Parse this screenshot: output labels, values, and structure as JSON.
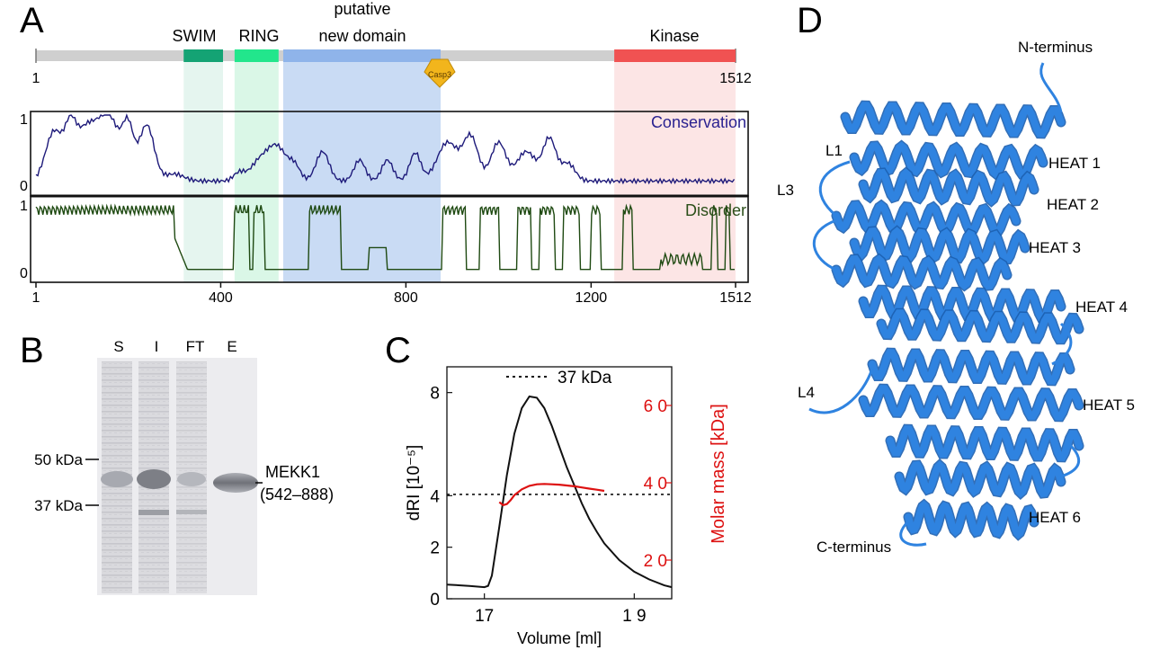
{
  "panel_labels": {
    "a": "A",
    "b": "B",
    "c": "C",
    "d": "D"
  },
  "colors": {
    "swim": "#14a374",
    "ring": "#22e68c",
    "new_domain": "#8fb4ea",
    "kinase": "#f05252",
    "casp3": "#f2b51c",
    "conservation": "#1e1a7a",
    "disorder": "#1f4a12",
    "molar_mass": "#dd1111",
    "helix": "#2f83e0"
  },
  "panel_a": {
    "length_start": "1",
    "length_end": "1512",
    "protein_length": 1512,
    "domains": [
      {
        "label": "SWIM",
        "start": 320,
        "end": 405,
        "color_key": "swim"
      },
      {
        "label": "RING",
        "start": 430,
        "end": 525,
        "color_key": "ring"
      },
      {
        "label_line1": "putative",
        "label_line2": "new domain",
        "start": 535,
        "end": 875,
        "color_key": "new_domain"
      },
      {
        "label": "Kinase",
        "start": 1250,
        "end": 1512,
        "color_key": "kinase"
      }
    ],
    "casp3": {
      "label": "Casp3",
      "position": 875
    },
    "conservation_label": "Conservation",
    "disorder_label": "Disorder",
    "y_ticks_top": [
      "1",
      "0"
    ],
    "y_ticks_bottom": [
      "1",
      "0"
    ],
    "x_ticks": [
      "1",
      "400",
      "800",
      "1200",
      "1512"
    ],
    "x_tick_values": [
      1,
      400,
      800,
      1200,
      1512
    ]
  },
  "panel_b": {
    "lanes": [
      "S",
      "I",
      "FT",
      "E"
    ],
    "markers": [
      "50 kDa",
      "37 kDa"
    ],
    "band_label_line1": "MEKK1",
    "band_label_line2": "(542–888)"
  },
  "chart_data": {
    "type": "line",
    "legend_label": "37 kDa",
    "xlabel": "Volume [ml]",
    "ylabel_left": "dRI [10⁻⁵]",
    "ylabel_right": "Molar mass [kDa]",
    "xlim": [
      16.5,
      19.5
    ],
    "ylim_left": [
      0,
      9
    ],
    "ylim_right": [
      10,
      70
    ],
    "x_ticks": [
      "17",
      "1 9"
    ],
    "x_tick_values": [
      17,
      19
    ],
    "y_ticks_left": [
      "0",
      "2",
      "4",
      "8"
    ],
    "y_tick_values_left": [
      0,
      2,
      4,
      8
    ],
    "y_ticks_right": [
      "2 0",
      "4 0",
      "6 0"
    ],
    "y_tick_values_right": [
      20,
      40,
      60
    ],
    "reference_line_kda": 37,
    "series": [
      {
        "axis": "left",
        "x": [
          16.5,
          16.8,
          17.0,
          17.05,
          17.1,
          17.2,
          17.3,
          17.4,
          17.5,
          17.6,
          17.7,
          17.8,
          17.9,
          18.0,
          18.1,
          18.2,
          18.3,
          18.4,
          18.5,
          18.6,
          18.8,
          19.0,
          19.2,
          19.4,
          19.5
        ],
        "y": [
          0.55,
          0.5,
          0.45,
          0.5,
          0.9,
          2.8,
          4.8,
          6.4,
          7.4,
          7.85,
          7.8,
          7.4,
          6.7,
          5.9,
          5.1,
          4.4,
          3.7,
          3.1,
          2.6,
          2.15,
          1.5,
          1.05,
          0.75,
          0.52,
          0.45
        ]
      },
      {
        "name": "Molar mass",
        "axis": "right",
        "x": [
          17.2,
          17.25,
          17.3,
          17.35,
          17.4,
          17.5,
          17.6,
          17.7,
          17.8,
          17.9,
          18.0,
          18.1,
          18.2,
          18.3,
          18.4,
          18.5,
          18.6
        ],
        "y": [
          35,
          34.2,
          34.5,
          35.5,
          36.8,
          38.3,
          39.2,
          39.6,
          39.7,
          39.6,
          39.5,
          39.3,
          39.1,
          38.8,
          38.5,
          38.2,
          37.9
        ]
      }
    ]
  },
  "panel_d": {
    "labels": [
      "N-terminus",
      "L1",
      "HEAT 1",
      "L3",
      "HEAT 2",
      "HEAT 3",
      "HEAT 4",
      "L4",
      "HEAT 5",
      "HEAT 6",
      "C-terminus"
    ]
  }
}
